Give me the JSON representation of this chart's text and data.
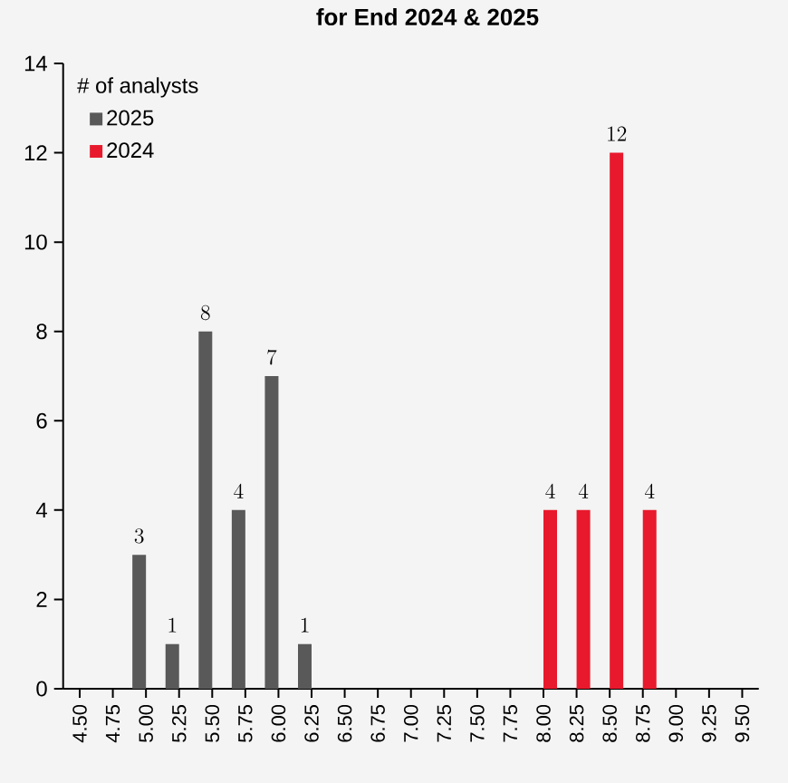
{
  "chart_data": {
    "type": "bar",
    "title": "for End 2024 & 2025",
    "legend_title": "# of analysts",
    "categories": [
      "4.50",
      "4.75",
      "5.00",
      "5.25",
      "5.50",
      "5.75",
      "6.00",
      "6.25",
      "6.50",
      "6.75",
      "7.00",
      "7.25",
      "7.50",
      "7.75",
      "8.00",
      "8.25",
      "8.50",
      "8.75",
      "9.00",
      "9.25",
      "9.50"
    ],
    "series": [
      {
        "name": "2025",
        "color": "#595959",
        "values": [
          null,
          null,
          3,
          1,
          8,
          4,
          7,
          1,
          null,
          null,
          null,
          null,
          null,
          null,
          null,
          null,
          null,
          null,
          null,
          null,
          null
        ]
      },
      {
        "name": "2024",
        "color": "#e8192c",
        "values": [
          null,
          null,
          null,
          null,
          null,
          null,
          null,
          null,
          null,
          null,
          null,
          null,
          null,
          null,
          4,
          4,
          12,
          4,
          null,
          null,
          null
        ]
      }
    ],
    "ylim": [
      0,
      14
    ],
    "yticks": [
      0,
      2,
      4,
      6,
      8,
      10,
      12,
      14
    ],
    "data_labels": true,
    "grid": false,
    "legend": "top left"
  }
}
